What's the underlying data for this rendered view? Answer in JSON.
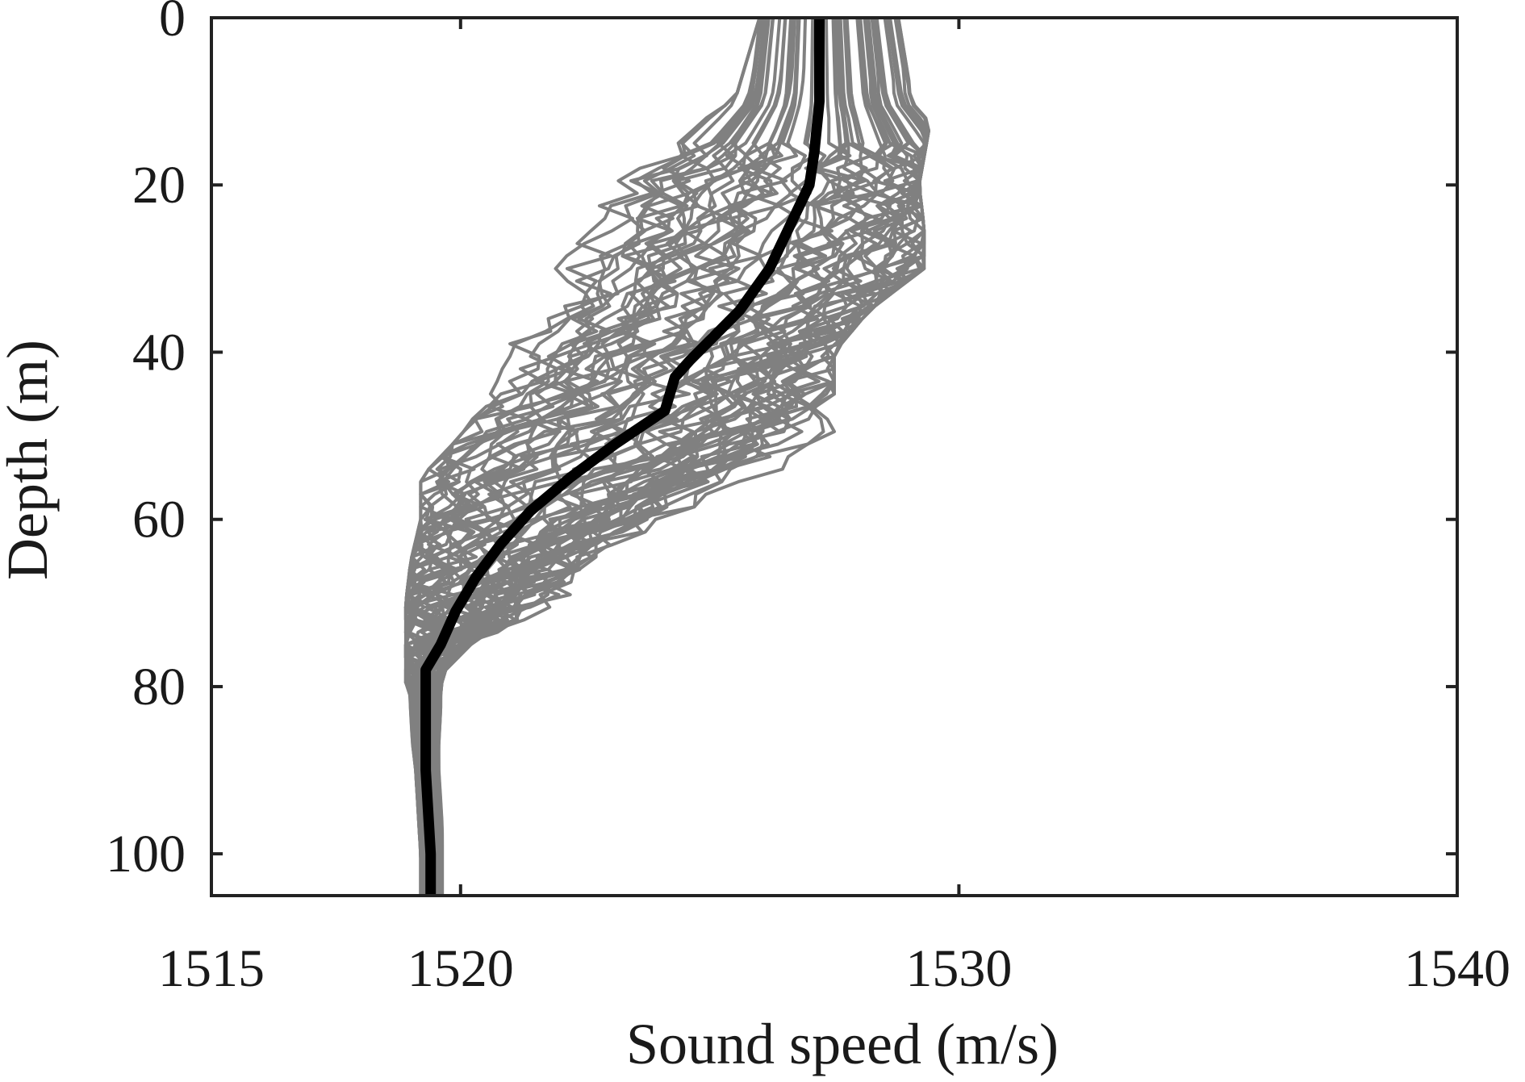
{
  "chart_data": {
    "type": "line",
    "title": "",
    "xlabel": "Sound speed (m/s)",
    "ylabel": "Depth (m)",
    "xlim": [
      1515,
      1540
    ],
    "ylim": [
      105,
      0
    ],
    "y_reversed": true,
    "x_ticks": [
      1515,
      1520,
      1530,
      1540
    ],
    "y_ticks": [
      0,
      20,
      40,
      60,
      80,
      100
    ],
    "grid": false,
    "legend": "none",
    "colors": {
      "mean": "#000000",
      "ensemble": "#808080",
      "axes": "#222222"
    },
    "ensemble": {
      "count": 60,
      "envelope_depths": [
        0,
        10,
        20,
        25,
        30,
        35,
        40,
        45,
        50,
        55,
        60,
        65,
        70,
        75,
        78,
        80,
        90,
        100,
        105
      ],
      "envelope_min": [
        1526.0,
        1525.5,
        1521.6,
        1521.6,
        1521.5,
        1520.9,
        1520.6,
        1520.6,
        1520.0,
        1519.2,
        1519.2,
        1519.0,
        1518.9,
        1518.9,
        1518.9,
        1518.9,
        1519.1,
        1519.2,
        1519.2
      ],
      "envelope_max": [
        1529.4,
        1529.5,
        1529.2,
        1529.3,
        1529.3,
        1528.2,
        1527.5,
        1527.5,
        1527.5,
        1526.2,
        1524.5,
        1523.0,
        1522.0,
        1520.2,
        1519.7,
        1519.6,
        1519.6,
        1519.7,
        1519.7
      ]
    },
    "series": [
      {
        "values_x": [
          1527.2,
          1527.2,
          1527.1,
          1527.0,
          1526.6,
          1526.2,
          1525.6,
          1525.1,
          1524.6,
          1524.3,
          1524.1,
          1523.1,
          1522.2,
          1521.4,
          1520.8,
          1520.3,
          1519.9,
          1519.6,
          1519.3,
          1519.3,
          1519.3,
          1519.4,
          1519.4
        ],
        "values_y": [
          0,
          10,
          16,
          20,
          25,
          30,
          35,
          38,
          41,
          43,
          47,
          51,
          55,
          59,
          63,
          67,
          71,
          75,
          78,
          80,
          90,
          100,
          105
        ]
      }
    ]
  }
}
